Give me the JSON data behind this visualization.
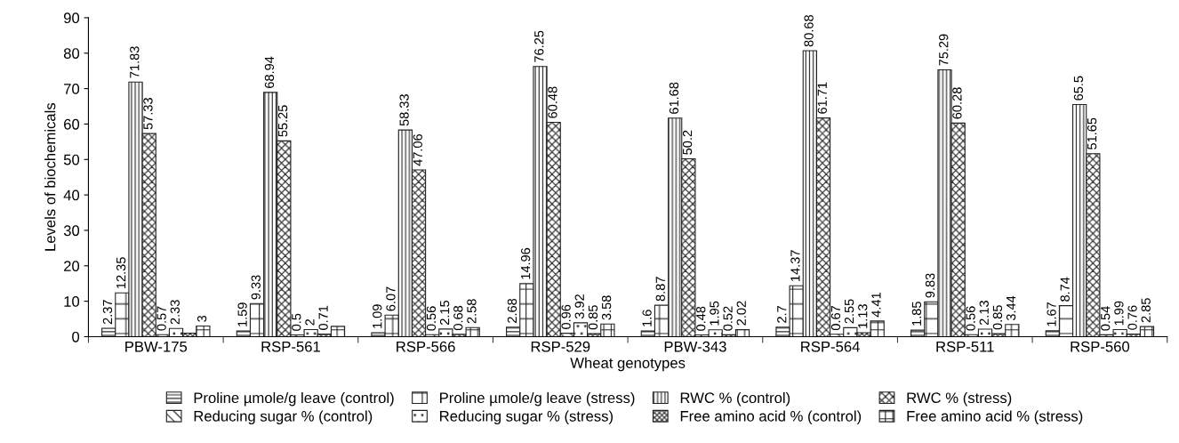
{
  "chart_data": {
    "type": "bar",
    "xlabel": "Wheat genotypes",
    "ylabel": "Levels of biochemicals",
    "categories": [
      "PBW-175",
      "RSP-561",
      "RSP-566",
      "RSP-529",
      "PBW-343",
      "RSP-564",
      "RSP-511",
      "RSP-560"
    ],
    "ylim": [
      0,
      90
    ],
    "yticks": [
      0,
      10,
      20,
      30,
      40,
      50,
      60,
      70,
      80,
      90
    ],
    "grid": false,
    "legend": "bottom",
    "series": [
      {
        "name": "Proline µmole/g leave (control)",
        "color": "#222222",
        "values": [
          2.37,
          1.59,
          1.09,
          2.68,
          1.6,
          2.7,
          1.85,
          1.67
        ],
        "value_labels": [
          "2.37",
          "1.59",
          "1.09",
          "2.68",
          "1.6",
          "2.7",
          "1.85",
          "1.67"
        ]
      },
      {
        "name": "Proline µmole/g leave (stress)",
        "color": "#222222",
        "values": [
          12.35,
          9.33,
          6.07,
          14.96,
          8.87,
          14.37,
          9.83,
          8.74
        ],
        "value_labels": [
          "12.35",
          "9.33",
          "6.07",
          "14.96",
          "8.87",
          "14.37",
          "9.83",
          "8.74"
        ]
      },
      {
        "name": "RWC % (control)",
        "color": "#222222",
        "values": [
          71.83,
          68.94,
          58.33,
          76.25,
          61.68,
          80.68,
          75.29,
          65.5
        ],
        "value_labels": [
          "71.83",
          "68.94",
          "58.33",
          "76.25",
          "61.68",
          "80.68",
          "75.29",
          "65.5"
        ]
      },
      {
        "name": "RWC % (stress)",
        "color": "#222222",
        "values": [
          57.33,
          55.25,
          47.06,
          60.48,
          50.2,
          61.71,
          60.28,
          51.65
        ],
        "value_labels": [
          "57.33",
          "55.25",
          "47.06",
          "60.48",
          "50.2",
          "61.71",
          "60.28",
          "51.65"
        ]
      },
      {
        "name": "Reducing sugar % (control)",
        "color": "#222222",
        "values": [
          0.57,
          0.5,
          0.56,
          0.96,
          0.48,
          0.67,
          0.56,
          0.54
        ],
        "value_labels": [
          "0.57",
          "0.5",
          "0.56",
          "0.96",
          "0.48",
          "0.67",
          "0.56",
          "0.54"
        ]
      },
      {
        "name": "Reducing sugar % (stress)",
        "color": "#222222",
        "values": [
          2.33,
          2,
          2.15,
          3.92,
          1.95,
          2.55,
          2.13,
          1.99
        ],
        "value_labels": [
          "2.33",
          "2",
          "2.15",
          "3.92",
          "1.95",
          "2.55",
          "2.13",
          "1.99"
        ]
      },
      {
        "name": "Free amino acid % (control)",
        "color": "#222222",
        "values": [
          1.0,
          0.71,
          0.68,
          0.85,
          0.52,
          1.13,
          0.85,
          0.76
        ],
        "value_labels": [
          null,
          "0.71",
          "0.68",
          "0.85",
          "0.52",
          "1.13",
          "0.85",
          "0.76"
        ]
      },
      {
        "name": "Free amino acid % (stress)",
        "color": "#222222",
        "values": [
          3,
          2.9,
          2.58,
          3.58,
          2.02,
          4.41,
          3.44,
          2.85
        ],
        "value_labels": [
          "3",
          null,
          "2.58",
          "3.58",
          "2.02",
          "4.41",
          "3.44",
          "2.85"
        ]
      }
    ]
  }
}
